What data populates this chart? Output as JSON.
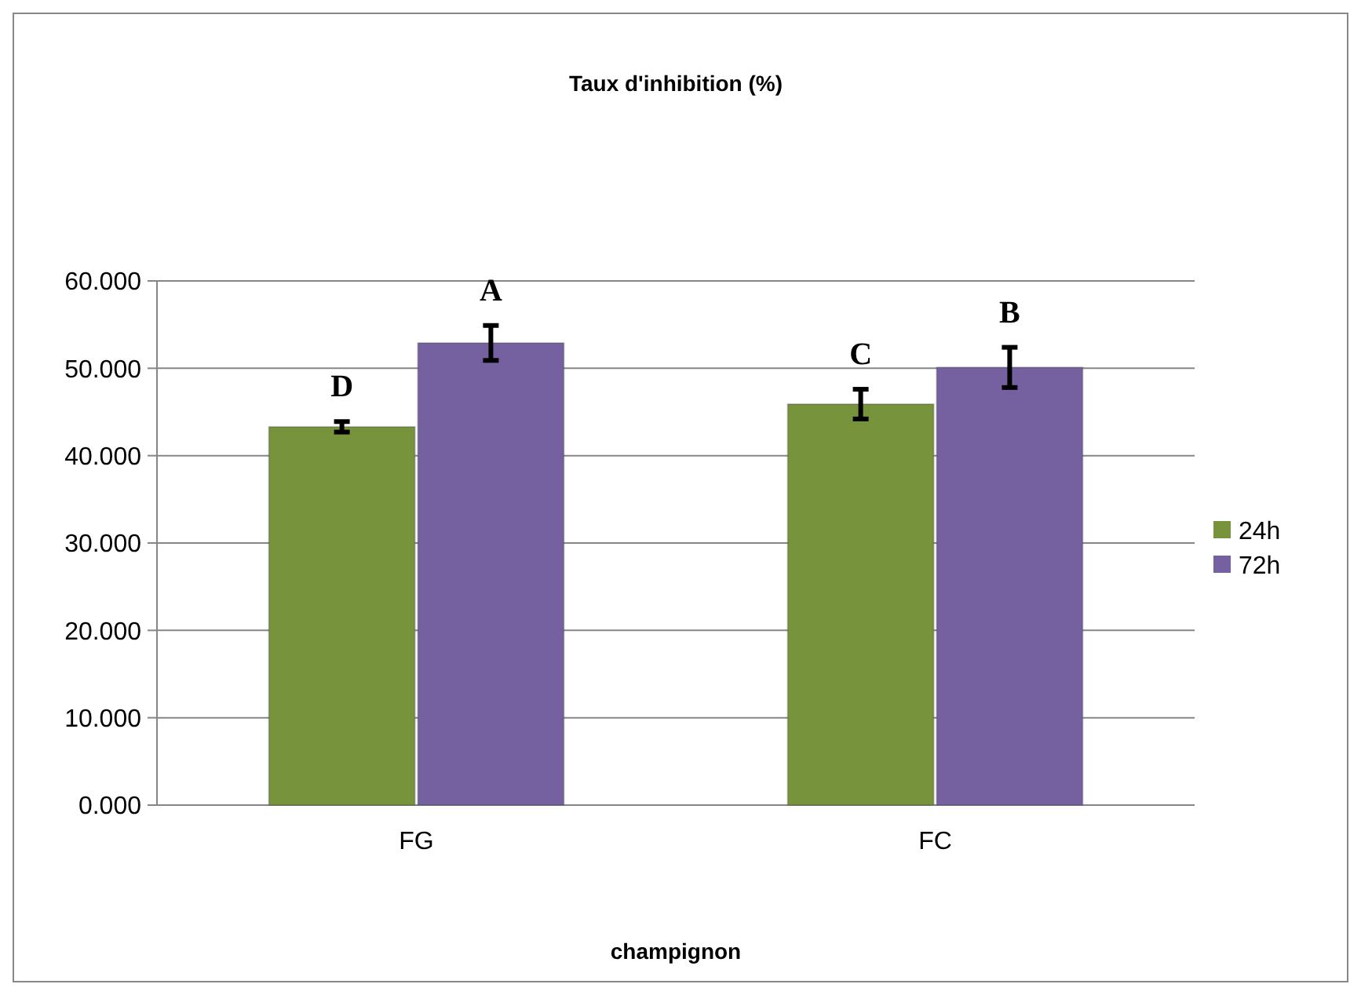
{
  "chart_data": {
    "type": "bar",
    "title": "Taux d'inhibition (%)",
    "xlabel": "champignon",
    "categories": [
      "FG",
      "FC"
    ],
    "series": [
      {
        "name": "24h",
        "color": "#77933c",
        "values": [
          43.3,
          45.9
        ],
        "errors": [
          0.6,
          1.7
        ],
        "value_labels": [
          "D",
          "C"
        ]
      },
      {
        "name": "72h",
        "color": "#7560a0",
        "values": [
          52.9,
          50.1
        ],
        "errors": [
          2.0,
          2.3
        ],
        "value_labels": [
          "A",
          "B"
        ]
      }
    ],
    "ylim": [
      0,
      60
    ],
    "yticks": [
      {
        "value": 0,
        "label": "0.000"
      },
      {
        "value": 10,
        "label": "10.000"
      },
      {
        "value": 20,
        "label": "20.000"
      },
      {
        "value": 30,
        "label": "30.000"
      },
      {
        "value": 40,
        "label": "40.000"
      },
      {
        "value": 50,
        "label": "50.000"
      },
      {
        "value": 60,
        "label": "60.000"
      }
    ],
    "grid": "y",
    "legend": "right"
  }
}
